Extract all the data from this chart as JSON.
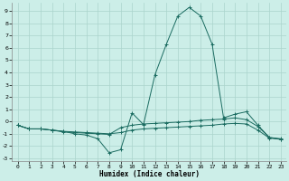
{
  "xlabel": "Humidex (Indice chaleur)",
  "bg_color": "#cceee8",
  "grid_color": "#aad4cc",
  "line_color": "#1a6b60",
  "xlim": [
    -0.5,
    23.5
  ],
  "ylim": [
    -3.2,
    9.7
  ],
  "xticks": [
    0,
    1,
    2,
    3,
    4,
    5,
    6,
    7,
    8,
    9,
    10,
    11,
    12,
    13,
    14,
    15,
    16,
    17,
    18,
    19,
    20,
    21,
    22,
    23
  ],
  "yticks": [
    -3,
    -2,
    -1,
    0,
    1,
    2,
    3,
    4,
    5,
    6,
    7,
    8,
    9
  ],
  "series1": [
    [
      0,
      -0.3
    ],
    [
      1,
      -0.6
    ],
    [
      2,
      -0.6
    ],
    [
      3,
      -0.7
    ],
    [
      4,
      -0.8
    ],
    [
      5,
      -1.0
    ],
    [
      6,
      -1.1
    ],
    [
      7,
      -1.4
    ],
    [
      8,
      -2.55
    ],
    [
      9,
      -2.3
    ],
    [
      10,
      0.7
    ],
    [
      11,
      -0.25
    ],
    [
      12,
      3.8
    ],
    [
      13,
      6.3
    ],
    [
      14,
      8.6
    ],
    [
      15,
      9.3
    ],
    [
      16,
      8.6
    ],
    [
      17,
      6.3
    ],
    [
      18,
      0.3
    ],
    [
      19,
      0.6
    ],
    [
      20,
      0.8
    ],
    [
      21,
      -0.3
    ],
    [
      22,
      -1.3
    ],
    [
      23,
      -1.4
    ]
  ],
  "series2": [
    [
      0,
      -0.3
    ],
    [
      1,
      -0.6
    ],
    [
      2,
      -0.6
    ],
    [
      3,
      -0.7
    ],
    [
      4,
      -0.8
    ],
    [
      5,
      -0.85
    ],
    [
      6,
      -0.9
    ],
    [
      7,
      -0.95
    ],
    [
      8,
      -1.0
    ],
    [
      9,
      -0.9
    ],
    [
      10,
      -0.7
    ],
    [
      11,
      -0.6
    ],
    [
      12,
      -0.55
    ],
    [
      13,
      -0.5
    ],
    [
      14,
      -0.45
    ],
    [
      15,
      -0.4
    ],
    [
      16,
      -0.35
    ],
    [
      17,
      -0.3
    ],
    [
      18,
      -0.2
    ],
    [
      19,
      -0.15
    ],
    [
      20,
      -0.2
    ],
    [
      21,
      -0.7
    ],
    [
      22,
      -1.35
    ],
    [
      23,
      -1.45
    ]
  ],
  "series3": [
    [
      0,
      -0.3
    ],
    [
      1,
      -0.6
    ],
    [
      2,
      -0.6
    ],
    [
      3,
      -0.7
    ],
    [
      4,
      -0.85
    ],
    [
      5,
      -0.9
    ],
    [
      6,
      -0.95
    ],
    [
      7,
      -1.0
    ],
    [
      8,
      -1.05
    ],
    [
      9,
      -0.5
    ],
    [
      10,
      -0.3
    ],
    [
      11,
      -0.2
    ],
    [
      12,
      -0.15
    ],
    [
      13,
      -0.1
    ],
    [
      14,
      -0.05
    ],
    [
      15,
      0.0
    ],
    [
      16,
      0.1
    ],
    [
      17,
      0.15
    ],
    [
      18,
      0.2
    ],
    [
      19,
      0.3
    ],
    [
      20,
      0.15
    ],
    [
      21,
      -0.4
    ],
    [
      22,
      -1.3
    ],
    [
      23,
      -1.45
    ]
  ]
}
